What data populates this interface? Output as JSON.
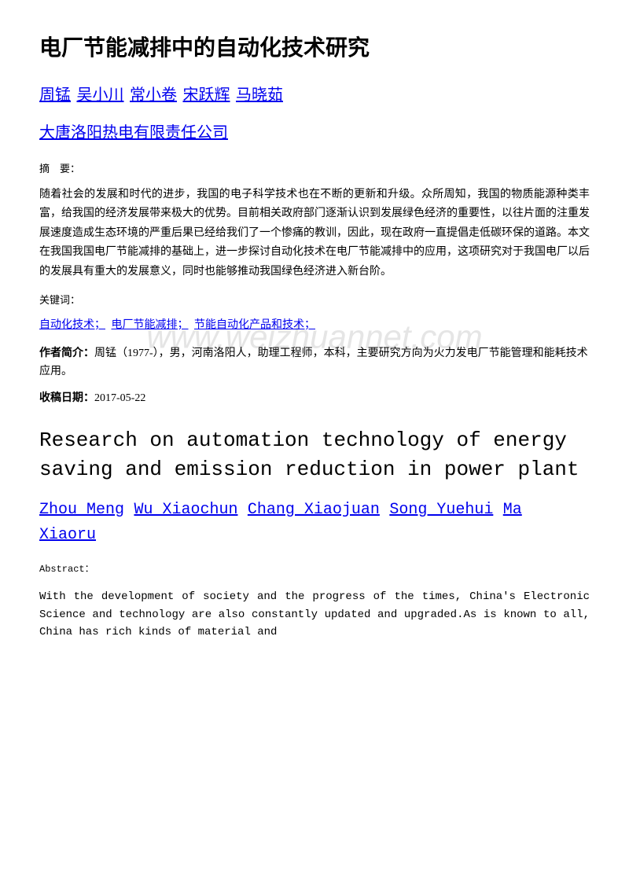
{
  "watermark": "www.weizhuannet.com",
  "title_cn": "电厂节能减排中的自动化技术研究",
  "authors_cn": [
    "周锰",
    "吴小川",
    "常小卷",
    "宋跃辉",
    "马晓茹"
  ],
  "affiliation_cn": "大唐洛阳热电有限责任公司",
  "abstract_label_cn": "摘　要：",
  "abstract_cn": "随着社会的发展和时代的进步，我国的电子科学技术也在不断的更新和升级。众所周知，我国的物质能源种类丰富，给我国的经济发展带来极大的优势。目前相关政府部门逐渐认识到发展绿色经济的重要性，以往片面的注重发展速度造成生态环境的严重后果已经给我们了一个惨痛的教训，因此，现在政府一直提倡走低碳环保的道路。本文在我国我国电厂节能减排的基础上，进一步探讨自动化技术在电厂节能减排中的应用，这项研究对于我国电厂以后的发展具有重大的发展意义，同时也能够推动我国绿色经济进入新台阶。",
  "keywords_label_cn": "关键词：",
  "keywords_cn": [
    "自动化技术；",
    "电厂节能减排；",
    "节能自动化产品和技术；"
  ],
  "author_bio_label": "作者简介：",
  "author_bio": "周锰（1977-），男，河南洛阳人，助理工程师，本科，主要研究方向为火力发电厂节能管理和能耗技术应用。",
  "received_label": "收稿日期：",
  "received_date": "2017-05-22",
  "title_en": "Research on automation technology of energy saving and emission reduction in power plant",
  "authors_en": [
    "Zhou Meng",
    "Wu Xiaochun",
    "Chang Xiaojuan",
    "Song Yuehui",
    "Ma Xiaoru"
  ],
  "abstract_label_en": "Abstract：",
  "abstract_en": "With the development of society and the progress of the times, China's Electronic Science and technology are also constantly updated and upgraded.As is known to all, China has rich kinds of material and"
}
